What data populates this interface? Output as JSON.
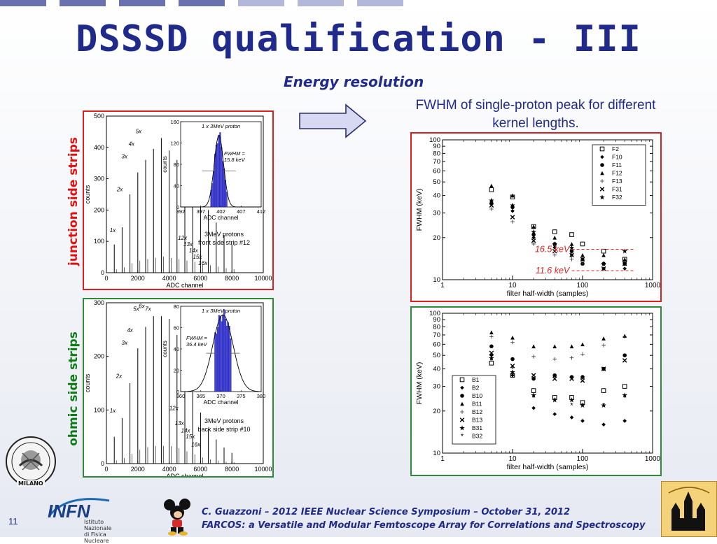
{
  "slide": {
    "title": "DSSSD qualification - III",
    "subtitle": "Energy resolution",
    "fwhm_note_line1": "FWHM of single-proton peak for different",
    "fwhm_note_line2": "kernel lengths.",
    "left_label_top": "junction side strips",
    "left_label_bottom": "ohmic side strips",
    "footer_line1": "C. Guazzoni – 2012 IEEE Nuclear Science Symposium – October 31, 2012",
    "footer_line2": "FARCOS: a Versatile and Modular Femtoscope Array for Correlations and Spectroscopy",
    "page_number": "11",
    "infn_logo": "INFN",
    "infn_line1": "Istituto Nazionale",
    "infn_line2": "di Fisica Nucleare",
    "polimi_text": "MILANO",
    "colors": {
      "title": "#1f2a8a",
      "red_frame": "#d92121",
      "green_frame": "#2e8b3a",
      "topbar": "#6f76b3",
      "hist_fill": "#4a4ae8"
    }
  },
  "chart_data": [
    {
      "type": "bar",
      "panel": "junction-spectrum",
      "xlabel": "ADC channel",
      "ylabel": "counts",
      "xlim": [
        0,
        10000
      ],
      "ylim": [
        0,
        500
      ],
      "xticks": [
        "0",
        "2000",
        "4000",
        "6000",
        "8000",
        "10000"
      ],
      "yticks": [
        "0",
        "100",
        "200",
        "300",
        "400",
        "500"
      ],
      "peaks_x": [
        500,
        1000,
        1500,
        2000,
        2500,
        3000,
        3500,
        4000,
        4500,
        5000,
        5500,
        6000,
        6500,
        7000,
        7500,
        8000
      ],
      "peaks_y": [
        90,
        145,
        250,
        320,
        360,
        395,
        430,
        390,
        360,
        320,
        290,
        230,
        200,
        160,
        120,
        90
      ],
      "peak_labels": [
        {
          "x": 400,
          "y": 130,
          "t": "1x"
        },
        {
          "x": 850,
          "y": 260,
          "t": "2x"
        },
        {
          "x": 1150,
          "y": 365,
          "t": "3x"
        },
        {
          "x": 1600,
          "y": 405,
          "t": "4x"
        },
        {
          "x": 2050,
          "y": 445,
          "t": "5x"
        },
        {
          "x": 4850,
          "y": 105,
          "t": "12x"
        },
        {
          "x": 5200,
          "y": 85,
          "t": "13x"
        },
        {
          "x": 5550,
          "y": 65,
          "t": "14x"
        },
        {
          "x": 5800,
          "y": 45,
          "t": "15x"
        },
        {
          "x": 6150,
          "y": 25,
          "t": "16x"
        }
      ],
      "note_line1": "3MeV protons",
      "note_line2": "front side strip #12",
      "inset": {
        "title": "1 x 3MeV proton",
        "xlabel": "ADC channel",
        "ylabel": "counts",
        "xlim": [
          392,
          412
        ],
        "ylim": [
          0,
          160
        ],
        "xticks": [
          "392",
          "397",
          "402",
          "407",
          "412"
        ],
        "yticks": [
          "0",
          "40",
          "80",
          "120",
          "160"
        ],
        "fwhm_line1": "FWHM =",
        "fwhm_line2": "15.8 keV",
        "center": 401.5,
        "sigma": 1.1,
        "peak": 135
      }
    },
    {
      "type": "bar",
      "panel": "ohmic-spectrum",
      "xlabel": "ADC channel",
      "ylabel": "counts",
      "xlim": [
        0,
        10000
      ],
      "ylim": [
        0,
        300
      ],
      "xticks": [
        "0",
        "2000",
        "4000",
        "6000",
        "8000",
        "10000"
      ],
      "yticks": [
        "0",
        "100",
        "200",
        "300"
      ],
      "peaks_x": [
        500,
        1000,
        1500,
        2000,
        2500,
        3000,
        3500,
        4000,
        4500,
        5000,
        5500,
        6000,
        6500,
        7000,
        7500,
        8000
      ],
      "peaks_y": [
        50,
        85,
        150,
        215,
        255,
        275,
        275,
        270,
        240,
        190,
        140,
        95,
        65,
        45,
        30,
        20
      ],
      "peak_labels": [
        {
          "x": 400,
          "y": 95,
          "t": "1x"
        },
        {
          "x": 800,
          "y": 160,
          "t": "2x"
        },
        {
          "x": 1150,
          "y": 222,
          "t": "3x"
        },
        {
          "x": 1500,
          "y": 245,
          "t": "4x"
        },
        {
          "x": 1900,
          "y": 285,
          "t": "5x"
        },
        {
          "x": 2250,
          "y": 290,
          "t": "6x"
        },
        {
          "x": 2650,
          "y": 285,
          "t": "7x"
        },
        {
          "x": 4300,
          "y": 100,
          "t": "12x"
        },
        {
          "x": 4650,
          "y": 72,
          "t": "13x"
        },
        {
          "x": 5050,
          "y": 58,
          "t": "14x"
        },
        {
          "x": 5350,
          "y": 47,
          "t": "15x"
        },
        {
          "x": 5700,
          "y": 32,
          "t": "16x"
        }
      ],
      "note_line1": "3MeV protons",
      "note_line2": "back side strip #10",
      "inset": {
        "title": "1 x 3MeV proton",
        "xlabel": "ADC channel",
        "ylabel": "counts",
        "xlim": [
          360,
          380
        ],
        "ylim": [
          0,
          80
        ],
        "xticks": [
          "360",
          "365",
          "370",
          "375",
          "380"
        ],
        "yticks": [
          "0",
          "20",
          "40",
          "60",
          "80"
        ],
        "fwhm_line1": "FWHM =",
        "fwhm_line2": "36.4 keV",
        "center": 370.5,
        "sigma": 2.4,
        "peak": 72
      }
    },
    {
      "type": "scatter",
      "panel": "junction-fwhm",
      "xlabel": "filter half-width (samples)",
      "ylabel": "FWHM (keV)",
      "xscale": "log",
      "yscale": "log",
      "xlim": [
        1,
        1000
      ],
      "ylim": [
        10,
        100
      ],
      "xticks": [
        "1",
        "10",
        "100",
        "1000"
      ],
      "yticks": [
        "10",
        "20",
        "30",
        "40",
        "50",
        "60",
        "70",
        "80",
        "90",
        "100"
      ],
      "legend_position": "top-right",
      "x": [
        5,
        10,
        20,
        40,
        70,
        100,
        200,
        400
      ],
      "series": [
        {
          "name": "F2",
          "marker": "sq",
          "values": [
            44,
            39,
            24,
            22,
            21,
            18,
            16,
            14
          ]
        },
        {
          "name": "F10",
          "marker": "dia",
          "values": [
            36,
            31,
            20,
            17,
            15,
            14,
            12,
            12
          ]
        },
        {
          "name": "F11",
          "marker": "dot",
          "values": [
            35,
            33,
            21,
            18,
            16,
            13,
            13,
            13
          ]
        },
        {
          "name": "F12",
          "marker": "tri",
          "values": [
            47,
            40,
            24,
            20,
            18,
            15,
            15,
            14
          ]
        },
        {
          "name": "F13",
          "marker": "plus",
          "values": [
            32,
            26,
            18,
            15,
            14,
            13,
            12,
            12
          ]
        },
        {
          "name": "F31",
          "marker": "x",
          "values": [
            34,
            28,
            19,
            16,
            15,
            14,
            12,
            13
          ]
        },
        {
          "name": "F32",
          "marker": "star",
          "values": [
            37,
            34,
            22,
            18,
            17,
            14,
            13,
            16
          ]
        }
      ],
      "annotations": [
        {
          "text": "16.5 keV",
          "y": 16.5,
          "color": "#e02020"
        },
        {
          "text": "11.6 keV",
          "y": 11.6,
          "color": "#e02020"
        }
      ]
    },
    {
      "type": "scatter",
      "panel": "ohmic-fwhm",
      "xlabel": "filter half-width (samples)",
      "ylabel": "FWHM (keV)",
      "xscale": "log",
      "yscale": "log",
      "xlim": [
        1,
        1000
      ],
      "ylim": [
        10,
        100
      ],
      "xticks": [
        "1",
        "10",
        "100",
        "1000"
      ],
      "yticks": [
        "10",
        "20",
        "30",
        "40",
        "50",
        "60",
        "70",
        "80",
        "90",
        "100"
      ],
      "legend_position": "bottom-left",
      "x": [
        5,
        10,
        20,
        40,
        70,
        100,
        200,
        400
      ],
      "series": [
        {
          "name": "B1",
          "marker": "sq",
          "values": [
            44,
            36,
            28,
            25,
            25,
            23,
            28,
            30
          ]
        },
        {
          "name": "B2",
          "marker": "dia",
          "values": [
            50,
            36,
            21,
            19,
            18,
            17,
            16,
            17
          ]
        },
        {
          "name": "B10",
          "marker": "dot",
          "values": [
            58,
            47,
            34,
            36,
            35,
            35,
            40,
            50
          ]
        },
        {
          "name": "B11",
          "marker": "tri",
          "values": [
            73,
            67,
            58,
            58,
            58,
            60,
            66,
            69
          ]
        },
        {
          "name": "B12",
          "marker": "plus",
          "values": [
            68,
            62,
            49,
            47,
            48,
            51,
            59,
            68
          ]
        },
        {
          "name": "B13",
          "marker": "x",
          "values": [
            52,
            42,
            36,
            34,
            34,
            33,
            40,
            46
          ]
        },
        {
          "name": "B31",
          "marker": "star",
          "values": [
            48,
            38,
            26,
            24,
            24,
            22,
            22,
            26
          ]
        },
        {
          "name": "B32",
          "marker": "ast",
          "values": [
            46,
            40,
            25,
            24,
            22,
            22,
            22,
            25
          ]
        }
      ]
    }
  ]
}
